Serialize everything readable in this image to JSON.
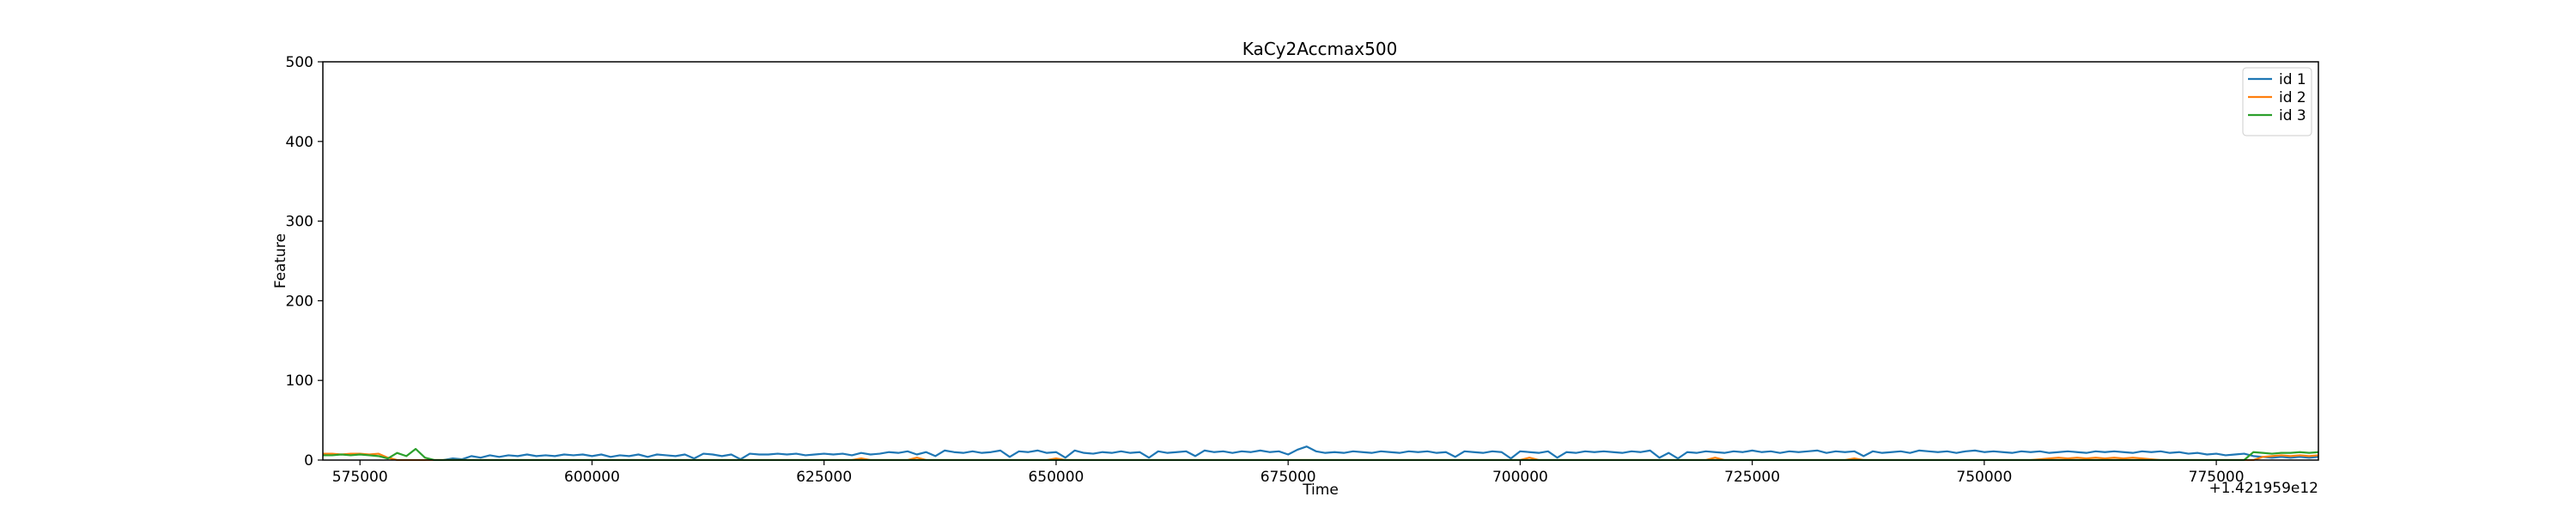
{
  "chart_data": {
    "type": "line",
    "title": "KaCy2Accmax500",
    "xlabel": "Time",
    "ylabel": "Feature",
    "x_offset_label": "+1.421959e12",
    "xlim": [
      571000,
      786000
    ],
    "ylim": [
      0,
      500
    ],
    "x_ticks": [
      575000,
      600000,
      625000,
      650000,
      675000,
      700000,
      725000,
      750000,
      775000
    ],
    "x_tick_labels": [
      "575000",
      "600000",
      "625000",
      "650000",
      "675000",
      "700000",
      "725000",
      "750000",
      "775000"
    ],
    "y_ticks": [
      0,
      100,
      200,
      300,
      400,
      500
    ],
    "y_tick_labels": [
      "0",
      "100",
      "200",
      "300",
      "400",
      "500"
    ],
    "legend_position": "top-right",
    "grid": false,
    "series": [
      {
        "name": "id 1",
        "color": "#1f77b4",
        "points": [
          [
            584000,
            0
          ],
          [
            585000,
            2
          ],
          [
            586000,
            1
          ],
          [
            587000,
            5
          ],
          [
            588000,
            3
          ],
          [
            589000,
            6
          ],
          [
            590000,
            4
          ],
          [
            591000,
            6
          ],
          [
            592000,
            5
          ],
          [
            593000,
            7
          ],
          [
            594000,
            5
          ],
          [
            595000,
            6
          ],
          [
            596000,
            5
          ],
          [
            597000,
            7
          ],
          [
            598000,
            6
          ],
          [
            599000,
            7
          ],
          [
            600000,
            5
          ],
          [
            601000,
            7
          ],
          [
            602000,
            4
          ],
          [
            603000,
            6
          ],
          [
            604000,
            5
          ],
          [
            605000,
            7
          ],
          [
            606000,
            4
          ],
          [
            607000,
            7
          ],
          [
            608000,
            6
          ],
          [
            609000,
            5
          ],
          [
            610000,
            7
          ],
          [
            611000,
            2
          ],
          [
            612000,
            8
          ],
          [
            613000,
            7
          ],
          [
            614000,
            5
          ],
          [
            615000,
            7
          ],
          [
            616000,
            1
          ],
          [
            617000,
            8
          ],
          [
            618000,
            7
          ],
          [
            619000,
            7
          ],
          [
            620000,
            8
          ],
          [
            621000,
            7
          ],
          [
            622000,
            8
          ],
          [
            623000,
            6
          ],
          [
            624000,
            7
          ],
          [
            625000,
            8
          ],
          [
            626000,
            7
          ],
          [
            627000,
            8
          ],
          [
            628000,
            6
          ],
          [
            629000,
            9
          ],
          [
            630000,
            7
          ],
          [
            631000,
            8
          ],
          [
            632000,
            10
          ],
          [
            633000,
            9
          ],
          [
            634000,
            11
          ],
          [
            635000,
            7
          ],
          [
            636000,
            10
          ],
          [
            637000,
            5
          ],
          [
            638000,
            12
          ],
          [
            639000,
            10
          ],
          [
            640000,
            9
          ],
          [
            641000,
            11
          ],
          [
            642000,
            9
          ],
          [
            643000,
            10
          ],
          [
            644000,
            12
          ],
          [
            645000,
            4
          ],
          [
            646000,
            11
          ],
          [
            647000,
            10
          ],
          [
            648000,
            12
          ],
          [
            649000,
            9
          ],
          [
            650000,
            10
          ],
          [
            651000,
            3
          ],
          [
            652000,
            12
          ],
          [
            653000,
            9
          ],
          [
            654000,
            8
          ],
          [
            655000,
            10
          ],
          [
            656000,
            9
          ],
          [
            657000,
            11
          ],
          [
            658000,
            9
          ],
          [
            659000,
            10
          ],
          [
            660000,
            3
          ],
          [
            661000,
            11
          ],
          [
            662000,
            9
          ],
          [
            663000,
            10
          ],
          [
            664000,
            11
          ],
          [
            665000,
            5
          ],
          [
            666000,
            12
          ],
          [
            667000,
            10
          ],
          [
            668000,
            11
          ],
          [
            669000,
            9
          ],
          [
            670000,
            11
          ],
          [
            671000,
            10
          ],
          [
            672000,
            12
          ],
          [
            673000,
            10
          ],
          [
            674000,
            11
          ],
          [
            675000,
            7
          ],
          [
            676000,
            13
          ],
          [
            677000,
            17
          ],
          [
            678000,
            11
          ],
          [
            679000,
            9
          ],
          [
            680000,
            10
          ],
          [
            681000,
            9
          ],
          [
            682000,
            11
          ],
          [
            683000,
            10
          ],
          [
            684000,
            9
          ],
          [
            685000,
            11
          ],
          [
            686000,
            10
          ],
          [
            687000,
            9
          ],
          [
            688000,
            11
          ],
          [
            689000,
            10
          ],
          [
            690000,
            11
          ],
          [
            691000,
            9
          ],
          [
            692000,
            10
          ],
          [
            693000,
            4
          ],
          [
            694000,
            11
          ],
          [
            695000,
            10
          ],
          [
            696000,
            9
          ],
          [
            697000,
            11
          ],
          [
            698000,
            10
          ],
          [
            699000,
            2
          ],
          [
            700000,
            11
          ],
          [
            701000,
            10
          ],
          [
            702000,
            9
          ],
          [
            703000,
            11
          ],
          [
            704000,
            3
          ],
          [
            705000,
            10
          ],
          [
            706000,
            9
          ],
          [
            707000,
            11
          ],
          [
            708000,
            10
          ],
          [
            709000,
            11
          ],
          [
            710000,
            10
          ],
          [
            711000,
            9
          ],
          [
            712000,
            11
          ],
          [
            713000,
            10
          ],
          [
            714000,
            12
          ],
          [
            715000,
            3
          ],
          [
            716000,
            9
          ],
          [
            717000,
            2
          ],
          [
            718000,
            10
          ],
          [
            719000,
            9
          ],
          [
            720000,
            11
          ],
          [
            721000,
            10
          ],
          [
            722000,
            9
          ],
          [
            723000,
            11
          ],
          [
            724000,
            10
          ],
          [
            725000,
            12
          ],
          [
            726000,
            10
          ],
          [
            727000,
            11
          ],
          [
            728000,
            9
          ],
          [
            729000,
            11
          ],
          [
            730000,
            10
          ],
          [
            731000,
            11
          ],
          [
            732000,
            12
          ],
          [
            733000,
            9
          ],
          [
            734000,
            11
          ],
          [
            735000,
            10
          ],
          [
            736000,
            11
          ],
          [
            737000,
            5
          ],
          [
            738000,
            11
          ],
          [
            739000,
            9
          ],
          [
            740000,
            10
          ],
          [
            741000,
            11
          ],
          [
            742000,
            9
          ],
          [
            743000,
            12
          ],
          [
            744000,
            11
          ],
          [
            745000,
            10
          ],
          [
            746000,
            11
          ],
          [
            747000,
            9
          ],
          [
            748000,
            11
          ],
          [
            749000,
            12
          ],
          [
            750000,
            10
          ],
          [
            751000,
            11
          ],
          [
            752000,
            10
          ],
          [
            753000,
            9
          ],
          [
            754000,
            11
          ],
          [
            755000,
            10
          ],
          [
            756000,
            11
          ],
          [
            757000,
            9
          ],
          [
            758000,
            10
          ],
          [
            759000,
            11
          ],
          [
            760000,
            10
          ],
          [
            761000,
            9
          ],
          [
            762000,
            11
          ],
          [
            763000,
            10
          ],
          [
            764000,
            11
          ],
          [
            765000,
            10
          ],
          [
            766000,
            9
          ],
          [
            767000,
            11
          ],
          [
            768000,
            10
          ],
          [
            769000,
            11
          ],
          [
            770000,
            9
          ],
          [
            771000,
            10
          ],
          [
            772000,
            8
          ],
          [
            773000,
            9
          ],
          [
            774000,
            7
          ],
          [
            775000,
            8
          ],
          [
            776000,
            6
          ],
          [
            777000,
            7
          ],
          [
            778000,
            8
          ],
          [
            779000,
            5
          ],
          [
            780000,
            4
          ],
          [
            781000,
            3
          ],
          [
            782000,
            4
          ],
          [
            783000,
            3
          ],
          [
            784000,
            4
          ],
          [
            785000,
            3
          ],
          [
            786000,
            4
          ]
        ]
      },
      {
        "name": "id 2",
        "color": "#ff7f0e",
        "points": [
          [
            571000,
            8
          ],
          [
            572000,
            8
          ],
          [
            573000,
            7
          ],
          [
            574000,
            8
          ],
          [
            575000,
            8
          ],
          [
            576000,
            7
          ],
          [
            577000,
            8
          ],
          [
            578000,
            3
          ],
          [
            579000,
            0
          ],
          [
            600000,
            0
          ],
          [
            628000,
            0
          ],
          [
            629000,
            2
          ],
          [
            630000,
            0
          ],
          [
            634000,
            0
          ],
          [
            635000,
            3
          ],
          [
            636000,
            0
          ],
          [
            649000,
            0
          ],
          [
            650000,
            2
          ],
          [
            651000,
            0
          ],
          [
            700000,
            0
          ],
          [
            701000,
            3
          ],
          [
            702000,
            0
          ],
          [
            720000,
            0
          ],
          [
            721000,
            3
          ],
          [
            722000,
            0
          ],
          [
            735000,
            0
          ],
          [
            736000,
            2
          ],
          [
            737000,
            0
          ],
          [
            755000,
            0
          ],
          [
            756000,
            1
          ],
          [
            757000,
            2
          ],
          [
            758000,
            3
          ],
          [
            759000,
            2
          ],
          [
            760000,
            3
          ],
          [
            761000,
            2
          ],
          [
            762000,
            3
          ],
          [
            763000,
            2
          ],
          [
            764000,
            3
          ],
          [
            765000,
            2
          ],
          [
            766000,
            3
          ],
          [
            767000,
            2
          ],
          [
            768000,
            1
          ],
          [
            769000,
            0
          ],
          [
            779000,
            0
          ],
          [
            780000,
            4
          ],
          [
            781000,
            5
          ],
          [
            782000,
            6
          ],
          [
            783000,
            5
          ],
          [
            784000,
            6
          ],
          [
            785000,
            5
          ],
          [
            786000,
            6
          ]
        ]
      },
      {
        "name": "id 3",
        "color": "#2ca02c",
        "points": [
          [
            571000,
            6
          ],
          [
            572000,
            6
          ],
          [
            573000,
            7
          ],
          [
            574000,
            6
          ],
          [
            575000,
            7
          ],
          [
            576000,
            6
          ],
          [
            577000,
            5
          ],
          [
            578000,
            2
          ],
          [
            579000,
            9
          ],
          [
            580000,
            5
          ],
          [
            581000,
            14
          ],
          [
            582000,
            3
          ],
          [
            583000,
            0
          ],
          [
            778000,
            0
          ],
          [
            779000,
            10
          ],
          [
            780000,
            9
          ],
          [
            781000,
            8
          ],
          [
            782000,
            9
          ],
          [
            783000,
            9
          ],
          [
            784000,
            10
          ],
          [
            785000,
            9
          ],
          [
            786000,
            10
          ]
        ]
      }
    ]
  }
}
